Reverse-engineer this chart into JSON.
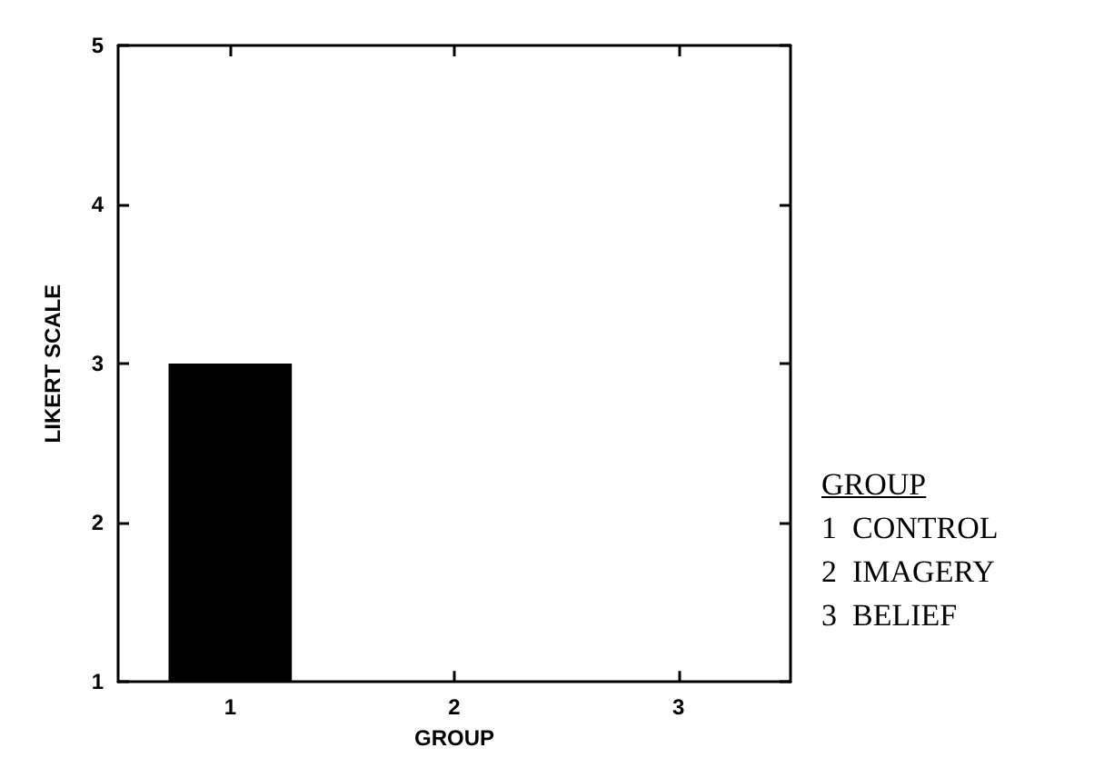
{
  "chart_data": {
    "type": "bar",
    "xlabel": "GROUP",
    "ylabel": "LIKERT SCALE",
    "categories": [
      "1",
      "2",
      "3"
    ],
    "values": [
      3,
      null,
      null
    ],
    "color": "#000000",
    "ylim": [
      1,
      5
    ],
    "yticks": [
      1,
      2,
      3,
      4,
      5
    ],
    "grid": false,
    "annotations": [
      "GROUP",
      "1  CONTROL",
      "2  IMAGERY",
      "3  BELIEF"
    ]
  }
}
